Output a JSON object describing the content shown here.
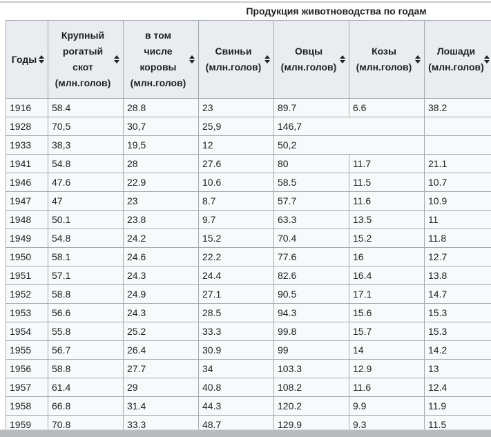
{
  "page": {
    "caption": "Продукция животноводства по годам"
  },
  "table": {
    "columns": [
      {
        "id": "years",
        "label": "Годы"
      },
      {
        "id": "cattle",
        "label": "Крупный\nрогатый\nскот\n(млн.голов)"
      },
      {
        "id": "cows",
        "label": "в том\nчисле\nкоровы\n(млн.голов)"
      },
      {
        "id": "pigs",
        "label": "Свиньи\n(млн.голов)"
      },
      {
        "id": "sheep",
        "label": "Овцы\n(млн.голов)"
      },
      {
        "id": "goats",
        "label": "Козы\n(млн.голов)"
      },
      {
        "id": "horses",
        "label": "Лошади\n(млн.голов)"
      }
    ],
    "rows": [
      {
        "year": "1916",
        "cells": [
          "58.4",
          "28.8",
          "23",
          "89.7",
          "6.6",
          "38.2"
        ]
      },
      {
        "year": "1928",
        "cells": [
          "70,5",
          "30,7",
          "25,9",
          {
            "value": "146,7",
            "colspan": 2
          },
          ""
        ]
      },
      {
        "year": "1933",
        "cells": [
          "38,3",
          "19,5",
          "12",
          {
            "value": "50,2",
            "colspan": 2
          },
          ""
        ]
      },
      {
        "year": "1941",
        "cells": [
          "54.8",
          "28",
          "27.6",
          "80",
          "11.7",
          "21.1"
        ]
      },
      {
        "year": "1946",
        "cells": [
          "47.6",
          "22.9",
          "10.6",
          "58.5",
          "11.5",
          "10.7"
        ]
      },
      {
        "year": "1947",
        "cells": [
          "47",
          "23",
          "8.7",
          "57.7",
          "11.6",
          "10.9"
        ]
      },
      {
        "year": "1948",
        "cells": [
          "50.1",
          "23.8",
          "9.7",
          "63.3",
          "13.5",
          "11"
        ]
      },
      {
        "year": "1949",
        "cells": [
          "54.8",
          "24.2",
          "15.2",
          "70.4",
          "15.2",
          "11.8"
        ]
      },
      {
        "year": "1950",
        "cells": [
          "58.1",
          "24.6",
          "22.2",
          "77.6",
          "16",
          "12.7"
        ]
      },
      {
        "year": "1951",
        "cells": [
          "57.1",
          "24.3",
          "24.4",
          "82.6",
          "16.4",
          "13.8"
        ]
      },
      {
        "year": "1952",
        "cells": [
          "58.8",
          "24.9",
          "27.1",
          "90.5",
          "17.1",
          "14.7"
        ]
      },
      {
        "year": "1953",
        "cells": [
          "56.6",
          "24.3",
          "28.5",
          "94.3",
          "15.6",
          "15.3"
        ]
      },
      {
        "year": "1954",
        "cells": [
          "55.8",
          "25.2",
          "33.3",
          "99.8",
          "15.7",
          "15.3"
        ]
      },
      {
        "year": "1955",
        "cells": [
          "56.7",
          "26.4",
          "30.9",
          "99",
          "14",
          "14.2"
        ]
      },
      {
        "year": "1956",
        "cells": [
          "58.8",
          "27.7",
          "34",
          "103.3",
          "12.9",
          "13"
        ]
      },
      {
        "year": "1957",
        "cells": [
          "61.4",
          "29",
          "40.8",
          "108.2",
          "11.6",
          "12.4"
        ]
      },
      {
        "year": "1958",
        "cells": [
          "66.8",
          "31.4",
          "44.3",
          "120.2",
          "9.9",
          "11.9"
        ]
      },
      {
        "year": "1959",
        "cells": [
          "70.8",
          "33.3",
          "48.7",
          "129.9",
          "9.3",
          "11.5"
        ]
      }
    ]
  },
  "icons": {
    "sort": "sort-arrows-unsorted"
  },
  "colors": {
    "table_border": "#a2a9b1",
    "header_bg": "#eaecf0",
    "row_bg": "#f8f9fa",
    "text": "#202122",
    "top_line": "#c8ccd1",
    "scrollbar": "#b9bcbf"
  }
}
